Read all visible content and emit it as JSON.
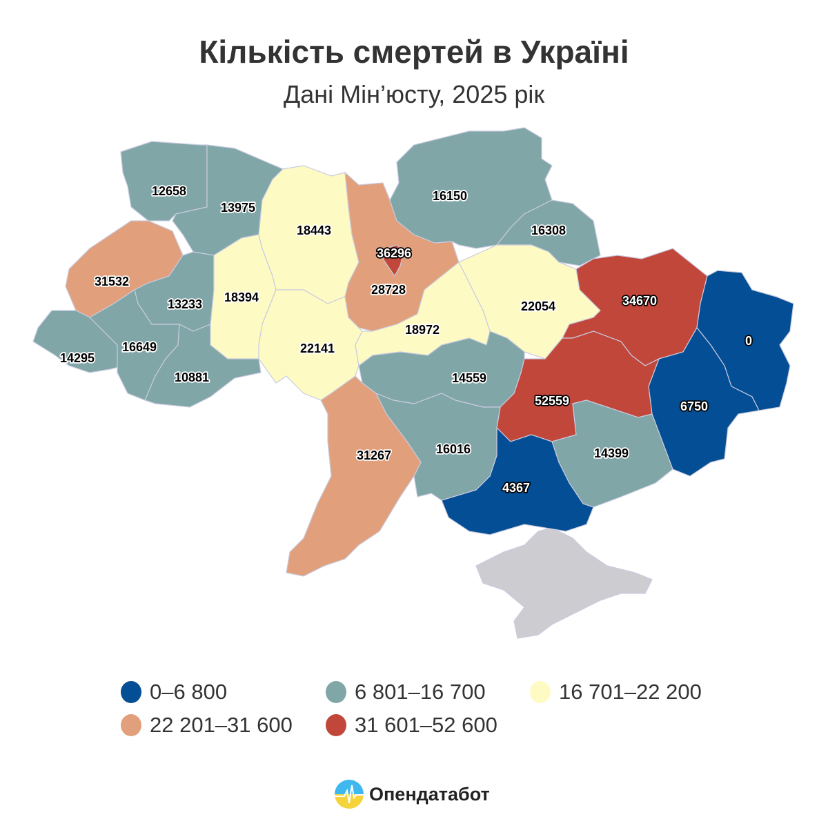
{
  "header": {
    "title": "Кількість смертей в Україні",
    "subtitle": "Дані Мін’юсту, 2025 рік"
  },
  "colors": {
    "c1": "#034e94",
    "c2": "#80a6a8",
    "c3": "#fefac3",
    "c4": "#e1a07b",
    "c5": "#c2473b",
    "no_data": "#cdcdd1"
  },
  "regions": {
    "volyn": {
      "value": "12658",
      "class": "c2"
    },
    "rivne": {
      "value": "13975",
      "class": "c2"
    },
    "zhytomyr": {
      "value": "18443",
      "class": "c3"
    },
    "kyiv_oblast": {
      "value": "28728",
      "class": "c4"
    },
    "kyiv_city": {
      "value": "36296",
      "class": "c5"
    },
    "chernihiv": {
      "value": "16150",
      "class": "c2"
    },
    "sumy": {
      "value": "16308",
      "class": "c2"
    },
    "lviv": {
      "value": "31532",
      "class": "c4"
    },
    "ternopil": {
      "value": "13233",
      "class": "c2"
    },
    "khmelnytskyi": {
      "value": "18394",
      "class": "c3"
    },
    "vinnytsia": {
      "value": "22141",
      "class": "c3"
    },
    "cherkasy": {
      "value": "18972",
      "class": "c3"
    },
    "poltava": {
      "value": "22054",
      "class": "c3"
    },
    "kharkiv": {
      "value": "34670",
      "class": "c5"
    },
    "luhansk": {
      "value": "0",
      "class": "c1"
    },
    "donetsk": {
      "value": "6750",
      "class": "c1"
    },
    "dnipro": {
      "value": "52559",
      "class": "c5"
    },
    "zaporizhzhia": {
      "value": "14399",
      "class": "c2"
    },
    "kherson": {
      "value": "4367",
      "class": "c1"
    },
    "mykolaiv": {
      "value": "16016",
      "class": "c2"
    },
    "kirovohrad": {
      "value": "14559",
      "class": "c2"
    },
    "odesa": {
      "value": "31267",
      "class": "c4"
    },
    "zakarpattia": {
      "value": "14295",
      "class": "c2"
    },
    "ivano_frankivsk": {
      "value": "16649",
      "class": "c2"
    },
    "chernivtsi": {
      "value": "10881",
      "class": "c2"
    }
  },
  "legend": [
    {
      "label": "0–6 800",
      "color": "#034e94"
    },
    {
      "label": "6 801–16 700",
      "color": "#80a6a8"
    },
    {
      "label": "16 701–22 200",
      "color": "#fefac3"
    },
    {
      "label": "22 201–31 600",
      "color": "#e1a07b"
    },
    {
      "label": "31 601–52 600",
      "color": "#c2473b"
    }
  ],
  "footer": {
    "brand": "Опендатабот"
  }
}
